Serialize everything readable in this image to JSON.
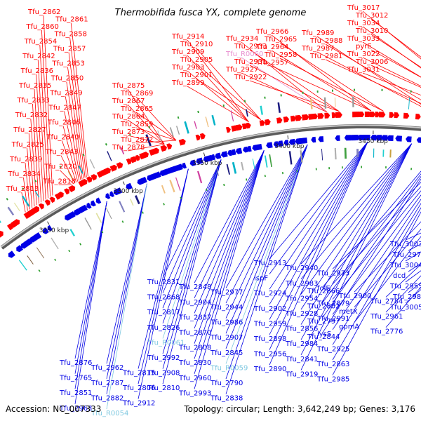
{
  "title": "Thermobifida fusca YX, complete genome",
  "footer": {
    "accession": "Accession: NC_007333",
    "summary": "Topology: circular; Length: 3,642,249 bp; Genes: 3,176"
  },
  "colors": {
    "forward": "#ff0000",
    "reverse": "#0000e6",
    "rna": "#7fc8e0",
    "pseudo": "#e88fd0",
    "backbone": "#808080"
  },
  "ticks": [
    "3250 kbp",
    "3300 kbp",
    "3350 kbp",
    "3400 kbp",
    "3450 kbp",
    "3500 kbp"
  ],
  "top_labels": [
    {
      "text": "Tfu_2862",
      "kind": "forward"
    },
    {
      "text": "Tfu_2861",
      "kind": "forward"
    },
    {
      "text": "Tfu_2860",
      "kind": "forward"
    },
    {
      "text": "Tfu_2858",
      "kind": "forward"
    },
    {
      "text": "Tfu_2854",
      "kind": "forward"
    },
    {
      "text": "Tfu_2857",
      "kind": "forward"
    },
    {
      "text": "Tfu_2842",
      "kind": "forward"
    },
    {
      "text": "Tfu_2853",
      "kind": "forward"
    },
    {
      "text": "Tfu_2836",
      "kind": "forward"
    },
    {
      "text": "Tfu_2850",
      "kind": "forward"
    },
    {
      "text": "Tfu_2835",
      "kind": "forward"
    },
    {
      "text": "Tfu_2849",
      "kind": "forward"
    },
    {
      "text": "Tfu_2833",
      "kind": "forward"
    },
    {
      "text": "Tfu_2847",
      "kind": "forward"
    },
    {
      "text": "Tfu_2832",
      "kind": "forward"
    },
    {
      "text": "Tfu_2846",
      "kind": "forward"
    },
    {
      "text": "Tfu_2827",
      "kind": "forward"
    },
    {
      "text": "Tfu_2840",
      "kind": "forward"
    },
    {
      "text": "Tfu_2825",
      "kind": "forward"
    },
    {
      "text": "Tfu_2843",
      "kind": "forward"
    },
    {
      "text": "Tfu_2839",
      "kind": "forward"
    },
    {
      "text": "Tfu_2820",
      "kind": "forward"
    },
    {
      "text": "Tfu_2834",
      "kind": "forward"
    },
    {
      "text": "Tfu_2818",
      "kind": "forward"
    },
    {
      "text": "Tfu_2813",
      "kind": "forward"
    },
    {
      "text": "Tfu_2875",
      "kind": "forward"
    },
    {
      "text": "Tfu_2869",
      "kind": "forward"
    },
    {
      "text": "Tfu_2867",
      "kind": "forward"
    },
    {
      "text": "Tfu_2865",
      "kind": "forward"
    },
    {
      "text": "Tfu_2864",
      "kind": "forward"
    },
    {
      "text": "Tfu_2859",
      "kind": "forward"
    },
    {
      "text": "Tfu_2873",
      "kind": "forward"
    },
    {
      "text": "Tfu_2872",
      "kind": "forward"
    },
    {
      "text": "Tfu_2878",
      "kind": "forward"
    },
    {
      "text": "Tfu_2914",
      "kind": "forward"
    },
    {
      "text": "Tfu_2910",
      "kind": "forward"
    },
    {
      "text": "Tfu_2909",
      "kind": "forward"
    },
    {
      "text": "Tfu_2905",
      "kind": "forward"
    },
    {
      "text": "Tfu_2903",
      "kind": "forward"
    },
    {
      "text": "Tfu_2901",
      "kind": "forward"
    },
    {
      "text": "Tfu_2899",
      "kind": "forward"
    },
    {
      "text": "Tfu_2934",
      "kind": "forward"
    },
    {
      "text": "Tfu_2933",
      "kind": "forward"
    },
    {
      "text": "Tfu_R0060",
      "kind": "pseudo"
    },
    {
      "text": "Tfu_2931",
      "kind": "forward"
    },
    {
      "text": "Tfu_2927",
      "kind": "forward"
    },
    {
      "text": "Tfu_2922",
      "kind": "forward"
    },
    {
      "text": "Tfu_2966",
      "kind": "forward"
    },
    {
      "text": "Tfu_2965",
      "kind": "forward"
    },
    {
      "text": "Tfu_2964",
      "kind": "forward"
    },
    {
      "text": "Tfu_2958",
      "kind": "forward"
    },
    {
      "text": "Tfu_2957",
      "kind": "forward"
    },
    {
      "text": "Tfu_2989",
      "kind": "forward"
    },
    {
      "text": "Tfu_2988",
      "kind": "forward"
    },
    {
      "text": "Tfu_2987",
      "kind": "forward"
    },
    {
      "text": "Tfu_2981",
      "kind": "forward"
    },
    {
      "text": "Tfu_3017",
      "kind": "forward"
    },
    {
      "text": "Tfu_3012",
      "kind": "forward"
    },
    {
      "text": "Tfu_3034",
      "kind": "forward"
    },
    {
      "text": "Tfu_3010",
      "kind": "forward"
    },
    {
      "text": "Tfu_3033",
      "kind": "forward"
    },
    {
      "text": "pyrE",
      "kind": "forward"
    },
    {
      "text": "Tfu_3022",
      "kind": "forward"
    },
    {
      "text": "Tfu_3006",
      "kind": "forward"
    },
    {
      "text": "Tfu_3031",
      "kind": "forward"
    }
  ],
  "bottom_labels": [
    {
      "text": "Tfu_3003",
      "kind": "reverse"
    },
    {
      "text": "Tfu_2979",
      "kind": "reverse"
    },
    {
      "text": "Tfu_3004",
      "kind": "reverse"
    },
    {
      "text": "dcd",
      "kind": "reverse"
    },
    {
      "text": "Tfu_2955",
      "kind": "reverse"
    },
    {
      "text": "Tfu_2980",
      "kind": "reverse"
    },
    {
      "text": "Tfu_3005",
      "kind": "reverse"
    },
    {
      "text": "Tfu_2913",
      "kind": "reverse"
    },
    {
      "text": "Tfu_2940",
      "kind": "reverse"
    },
    {
      "text": "Tfu_2973",
      "kind": "reverse"
    },
    {
      "text": "ispF",
      "kind": "reverse"
    },
    {
      "text": "Tfu_2983",
      "kind": "reverse"
    },
    {
      "text": "folE",
      "kind": "reverse"
    },
    {
      "text": "Tfu_2924",
      "kind": "reverse"
    },
    {
      "text": "Tfu_2954",
      "kind": "reverse"
    },
    {
      "text": "Tfu_2879",
      "kind": "reverse"
    },
    {
      "text": "Tfu_2902",
      "kind": "reverse"
    },
    {
      "text": "Tfu_2928",
      "kind": "reverse"
    },
    {
      "text": "Tfu_2991",
      "kind": "reverse"
    },
    {
      "text": "Tfu_2959",
      "kind": "reverse"
    },
    {
      "text": "Tfu_2856",
      "kind": "reverse"
    },
    {
      "text": "lysS",
      "kind": "reverse"
    },
    {
      "text": "Tfu_2898",
      "kind": "reverse"
    },
    {
      "text": "Tfu_2984",
      "kind": "reverse"
    },
    {
      "text": "Tfu_2925",
      "kind": "reverse"
    },
    {
      "text": "Tfu_2956",
      "kind": "reverse"
    },
    {
      "text": "Tfu_2841",
      "kind": "reverse"
    },
    {
      "text": "Tfu_2863",
      "kind": "reverse"
    },
    {
      "text": "Tfu_2890",
      "kind": "reverse"
    },
    {
      "text": "Tfu_2919",
      "kind": "reverse"
    },
    {
      "text": "Tfu_2985",
      "kind": "reverse"
    },
    {
      "text": "Tfu_2831",
      "kind": "reverse"
    },
    {
      "text": "Tfu_2848",
      "kind": "reverse"
    },
    {
      "text": "Tfu_2977",
      "kind": "reverse"
    },
    {
      "text": "Tfu_2868",
      "kind": "reverse"
    },
    {
      "text": "Tfu_2904",
      "kind": "reverse"
    },
    {
      "text": "Tfu_2944",
      "kind": "reverse"
    },
    {
      "text": "Tfu_2817",
      "kind": "reverse"
    },
    {
      "text": "Tfu_2837",
      "kind": "reverse"
    },
    {
      "text": "Tfu_2986",
      "kind": "reverse"
    },
    {
      "text": "Tfu_2826",
      "kind": "reverse"
    },
    {
      "text": "Tfu_2870",
      "kind": "reverse"
    },
    {
      "text": "Tfu_2907",
      "kind": "reverse"
    },
    {
      "text": "Tfu_R0061",
      "kind": "rna"
    },
    {
      "text": "Tfu_2808",
      "kind": "reverse"
    },
    {
      "text": "Tfu_2845",
      "kind": "reverse"
    },
    {
      "text": "Tfu_2992",
      "kind": "reverse"
    },
    {
      "text": "Tfu_2830",
      "kind": "reverse"
    },
    {
      "text": "Tfu_R0059",
      "kind": "rna"
    },
    {
      "text": "Tfu_2908",
      "kind": "reverse"
    },
    {
      "text": "Tfu_2960",
      "kind": "reverse"
    },
    {
      "text": "Tfu_2790",
      "kind": "reverse"
    },
    {
      "text": "Tfu_2810",
      "kind": "reverse"
    },
    {
      "text": "Tfu_2993",
      "kind": "reverse"
    },
    {
      "text": "Tfu_2838",
      "kind": "reverse"
    },
    {
      "text": "Tfu_2866",
      "kind": "reverse"
    },
    {
      "text": "Tfu_2900",
      "kind": "reverse"
    },
    {
      "text": "Tfu_2784",
      "kind": "reverse"
    },
    {
      "text": "Tfu_2802",
      "kind": "reverse"
    },
    {
      "text": "metX",
      "kind": "reverse"
    },
    {
      "text": "Tfu_2961",
      "kind": "reverse"
    },
    {
      "text": "Tfu_2797",
      "kind": "reverse"
    },
    {
      "text": "gpmA",
      "kind": "reverse"
    },
    {
      "text": "Tfu_2776",
      "kind": "reverse"
    },
    {
      "text": "Tfu_2844",
      "kind": "reverse"
    },
    {
      "text": "Tfu_2876",
      "kind": "reverse"
    },
    {
      "text": "Tfu_2962",
      "kind": "reverse"
    },
    {
      "text": "Tfu_2815",
      "kind": "reverse"
    },
    {
      "text": "Tfu_2765",
      "kind": "reverse"
    },
    {
      "text": "Tfu_2787",
      "kind": "reverse"
    },
    {
      "text": "Tfu_2806",
      "kind": "reverse"
    },
    {
      "text": "Tfu_2851",
      "kind": "reverse"
    },
    {
      "text": "Tfu_2882",
      "kind": "reverse"
    },
    {
      "text": "Tfu_2912",
      "kind": "reverse"
    },
    {
      "text": "Tfu_2963",
      "kind": "reverse"
    },
    {
      "text": "Tfu_R0054",
      "kind": "rna"
    },
    {
      "text": "Tfu_2788",
      "kind": "reverse"
    }
  ]
}
